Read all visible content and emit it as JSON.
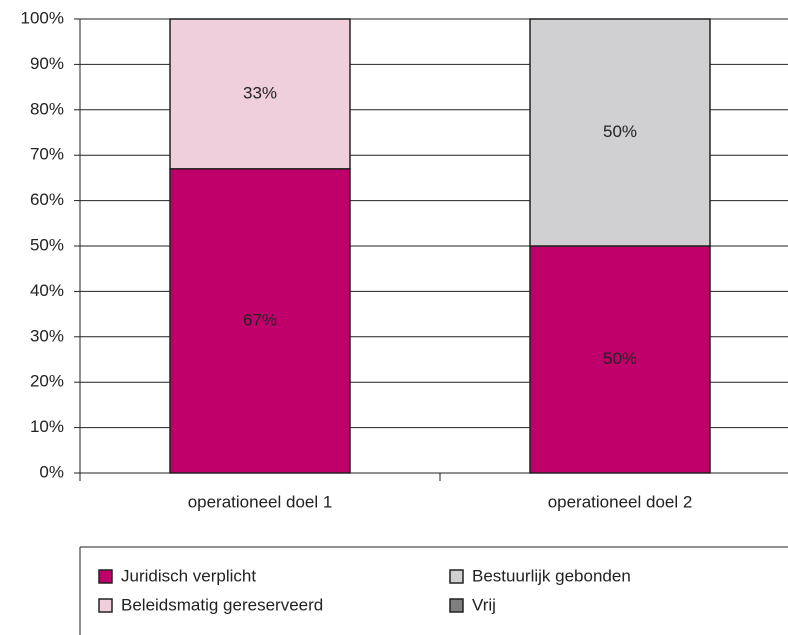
{
  "chart_data": {
    "type": "stacked_bar",
    "categories": [
      "operationeel doel 1",
      "operationeel doel 2"
    ],
    "series": [
      {
        "name": "Juridisch verplicht",
        "color": "#c0006a",
        "values": [
          67,
          50
        ],
        "value_labels": [
          "67%",
          "50%"
        ]
      },
      {
        "name": "Beleidsmatig gereserveerd",
        "color": "#f0cfdc",
        "values": [
          33,
          0
        ],
        "value_labels": [
          "33%",
          null
        ]
      },
      {
        "name": "Bestuurlijk gebonden",
        "color": "#d0d0d2",
        "values": [
          0,
          50
        ],
        "value_labels": [
          null,
          "50%"
        ]
      },
      {
        "name": "Vrij",
        "color": "#7f7f7f",
        "values": [
          0,
          0
        ],
        "value_labels": [
          null,
          null
        ]
      }
    ],
    "ylim": [
      0,
      100
    ],
    "yticks": [
      {
        "value": 0,
        "label": "0%"
      },
      {
        "value": 10,
        "label": "10%"
      },
      {
        "value": 20,
        "label": "20%"
      },
      {
        "value": 30,
        "label": "30%"
      },
      {
        "value": 40,
        "label": "40%"
      },
      {
        "value": 50,
        "label": "50%"
      },
      {
        "value": 60,
        "label": "60%"
      },
      {
        "value": 70,
        "label": "70%"
      },
      {
        "value": 80,
        "label": "80%"
      },
      {
        "value": 90,
        "label": "90%"
      },
      {
        "value": 100,
        "label": "100%"
      }
    ],
    "grid": true,
    "legend": "bottom"
  }
}
